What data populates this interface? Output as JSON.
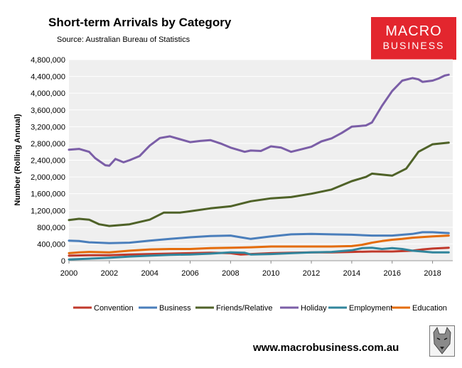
{
  "header": {
    "title": "Short-term Arrivals by Category",
    "subtitle": "Source: Australian Bureau of Statistics"
  },
  "logo": {
    "line1": "MACRO",
    "line2": "BUSINESS",
    "color": "#e3262e"
  },
  "footer": {
    "url": "www.macrobusiness.com.au"
  },
  "chart_data": {
    "type": "line",
    "title": "Short-term Arrivals by Category",
    "xlabel": "",
    "ylabel": "Number (Rolling Annual)",
    "xlim": [
      2000,
      2019
    ],
    "ylim": [
      0,
      4800000
    ],
    "xticks": [
      2000,
      2002,
      2004,
      2006,
      2008,
      2010,
      2012,
      2014,
      2016,
      2018
    ],
    "yticks": [
      0,
      400000,
      800000,
      1200000,
      1600000,
      2000000,
      2400000,
      2800000,
      3200000,
      3600000,
      4000000,
      4400000,
      4800000
    ],
    "ytick_labels": [
      "0",
      "400,000",
      "800,000",
      "1,200,000",
      "1,600,000",
      "2,000,000",
      "2,400,000",
      "2,800,000",
      "3,200,000",
      "3,600,000",
      "4,000,000",
      "4,400,000",
      "4,800,000"
    ],
    "legend_position": "bottom",
    "plot_background": "#efefef",
    "series": [
      {
        "name": "Convention",
        "color": "#c0392b",
        "points": [
          [
            2000,
            120000
          ],
          [
            2001,
            130000
          ],
          [
            2002,
            130000
          ],
          [
            2003,
            150000
          ],
          [
            2004,
            160000
          ],
          [
            2005,
            170000
          ],
          [
            2006,
            180000
          ],
          [
            2007,
            190000
          ],
          [
            2008,
            180000
          ],
          [
            2008.5,
            150000
          ],
          [
            2009,
            160000
          ],
          [
            2010,
            180000
          ],
          [
            2011,
            190000
          ],
          [
            2012,
            200000
          ],
          [
            2013,
            200000
          ],
          [
            2014,
            210000
          ],
          [
            2015,
            220000
          ],
          [
            2016,
            220000
          ],
          [
            2017,
            240000
          ],
          [
            2017.5,
            270000
          ],
          [
            2018,
            290000
          ],
          [
            2018.8,
            310000
          ]
        ]
      },
      {
        "name": "Business",
        "color": "#4a7ebb",
        "points": [
          [
            2000,
            480000
          ],
          [
            2000.5,
            470000
          ],
          [
            2001,
            440000
          ],
          [
            2002,
            420000
          ],
          [
            2003,
            430000
          ],
          [
            2004,
            480000
          ],
          [
            2005,
            520000
          ],
          [
            2006,
            560000
          ],
          [
            2007,
            590000
          ],
          [
            2008,
            600000
          ],
          [
            2008.5,
            560000
          ],
          [
            2009,
            520000
          ],
          [
            2010,
            580000
          ],
          [
            2011,
            630000
          ],
          [
            2012,
            640000
          ],
          [
            2013,
            630000
          ],
          [
            2014,
            620000
          ],
          [
            2015,
            600000
          ],
          [
            2016,
            600000
          ],
          [
            2017,
            640000
          ],
          [
            2017.5,
            680000
          ],
          [
            2018,
            680000
          ],
          [
            2018.8,
            660000
          ]
        ]
      },
      {
        "name": "Friends/Relative",
        "color": "#4f6228",
        "points": [
          [
            2000,
            970000
          ],
          [
            2000.5,
            1000000
          ],
          [
            2001,
            980000
          ],
          [
            2001.5,
            870000
          ],
          [
            2002,
            830000
          ],
          [
            2003,
            870000
          ],
          [
            2004,
            980000
          ],
          [
            2004.7,
            1150000
          ],
          [
            2005.5,
            1150000
          ],
          [
            2006,
            1180000
          ],
          [
            2007,
            1250000
          ],
          [
            2008,
            1300000
          ],
          [
            2009,
            1420000
          ],
          [
            2010,
            1490000
          ],
          [
            2011,
            1520000
          ],
          [
            2012,
            1600000
          ],
          [
            2013,
            1700000
          ],
          [
            2014,
            1900000
          ],
          [
            2014.7,
            2000000
          ],
          [
            2015,
            2080000
          ],
          [
            2016,
            2030000
          ],
          [
            2016.7,
            2200000
          ],
          [
            2017,
            2400000
          ],
          [
            2017.3,
            2600000
          ],
          [
            2018,
            2780000
          ],
          [
            2018.8,
            2820000
          ]
        ]
      },
      {
        "name": "Holiday",
        "color": "#7b5ea7",
        "points": [
          [
            2000,
            2650000
          ],
          [
            2000.5,
            2670000
          ],
          [
            2001,
            2600000
          ],
          [
            2001.3,
            2450000
          ],
          [
            2001.8,
            2280000
          ],
          [
            2002,
            2270000
          ],
          [
            2002.3,
            2430000
          ],
          [
            2002.7,
            2350000
          ],
          [
            2003,
            2400000
          ],
          [
            2003.5,
            2500000
          ],
          [
            2004,
            2750000
          ],
          [
            2004.5,
            2930000
          ],
          [
            2005,
            2970000
          ],
          [
            2005.5,
            2900000
          ],
          [
            2006,
            2830000
          ],
          [
            2006.5,
            2860000
          ],
          [
            2007,
            2880000
          ],
          [
            2007.5,
            2800000
          ],
          [
            2008,
            2700000
          ],
          [
            2008.7,
            2600000
          ],
          [
            2009,
            2630000
          ],
          [
            2009.5,
            2620000
          ],
          [
            2010,
            2730000
          ],
          [
            2010.5,
            2700000
          ],
          [
            2011,
            2600000
          ],
          [
            2011.5,
            2660000
          ],
          [
            2012,
            2720000
          ],
          [
            2012.5,
            2850000
          ],
          [
            2013,
            2920000
          ],
          [
            2013.5,
            3050000
          ],
          [
            2014,
            3200000
          ],
          [
            2014.7,
            3230000
          ],
          [
            2015,
            3300000
          ],
          [
            2015.5,
            3700000
          ],
          [
            2016,
            4050000
          ],
          [
            2016.5,
            4300000
          ],
          [
            2017,
            4360000
          ],
          [
            2017.3,
            4330000
          ],
          [
            2017.5,
            4270000
          ],
          [
            2018,
            4300000
          ],
          [
            2018.3,
            4350000
          ],
          [
            2018.6,
            4420000
          ],
          [
            2018.8,
            4440000
          ]
        ]
      },
      {
        "name": "Employment",
        "color": "#31859c",
        "points": [
          [
            2000,
            30000
          ],
          [
            2001,
            50000
          ],
          [
            2002,
            70000
          ],
          [
            2003,
            100000
          ],
          [
            2004,
            120000
          ],
          [
            2005,
            140000
          ],
          [
            2006,
            150000
          ],
          [
            2007,
            170000
          ],
          [
            2008,
            200000
          ],
          [
            2008.7,
            190000
          ],
          [
            2009,
            150000
          ],
          [
            2010,
            160000
          ],
          [
            2011,
            180000
          ],
          [
            2012,
            200000
          ],
          [
            2013,
            210000
          ],
          [
            2014,
            250000
          ],
          [
            2014.5,
            300000
          ],
          [
            2015,
            310000
          ],
          [
            2015.5,
            280000
          ],
          [
            2016,
            300000
          ],
          [
            2016.5,
            280000
          ],
          [
            2017,
            240000
          ],
          [
            2017.5,
            220000
          ],
          [
            2018,
            200000
          ],
          [
            2018.8,
            200000
          ]
        ]
      },
      {
        "name": "Education",
        "color": "#e46c0a",
        "points": [
          [
            2000,
            180000
          ],
          [
            2000.5,
            200000
          ],
          [
            2001,
            210000
          ],
          [
            2002,
            200000
          ],
          [
            2003,
            240000
          ],
          [
            2004,
            270000
          ],
          [
            2005,
            280000
          ],
          [
            2006,
            280000
          ],
          [
            2007,
            300000
          ],
          [
            2008,
            310000
          ],
          [
            2009,
            320000
          ],
          [
            2010,
            340000
          ],
          [
            2011,
            340000
          ],
          [
            2012,
            340000
          ],
          [
            2013,
            340000
          ],
          [
            2014,
            350000
          ],
          [
            2014.5,
            380000
          ],
          [
            2015,
            430000
          ],
          [
            2015.5,
            470000
          ],
          [
            2016,
            500000
          ],
          [
            2016.5,
            520000
          ],
          [
            2017,
            550000
          ],
          [
            2018,
            580000
          ],
          [
            2018.8,
            600000
          ]
        ]
      }
    ]
  }
}
